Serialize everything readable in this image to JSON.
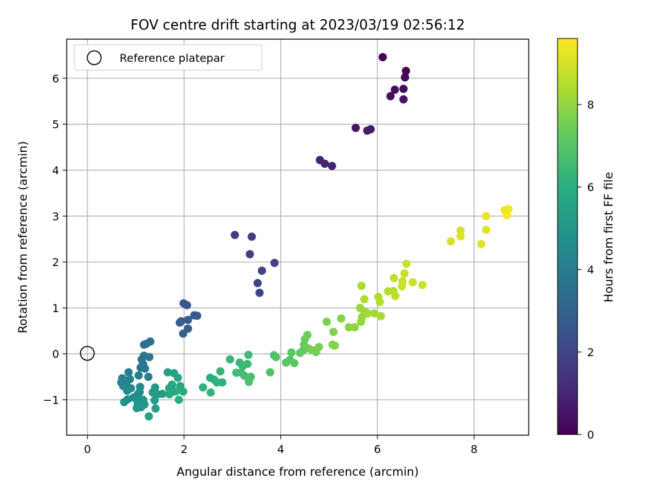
{
  "chart_data": {
    "type": "scatter",
    "title": "FOV centre drift starting at 2023/03/19 02:56:12",
    "xlabel": "Angular distance from reference (arcmin)",
    "ylabel": "Rotation from reference (arcmin)",
    "xlim": [
      -0.43,
      9.13
    ],
    "ylim": [
      -1.77,
      6.85
    ],
    "xticks": [
      0,
      2,
      4,
      6,
      8
    ],
    "yticks": [
      -1,
      0,
      1,
      2,
      3,
      4,
      5,
      6
    ],
    "grid": true,
    "legend": {
      "placement": "top-left",
      "entries": [
        "Reference platepar"
      ]
    },
    "reference_point": {
      "x": 0,
      "y": 0,
      "label": "Reference platepar"
    },
    "colorbar": {
      "label": "Hours from first FF file",
      "colormap": "viridis",
      "range": [
        0,
        9.6
      ],
      "ticks": [
        0,
        2,
        4,
        6,
        8
      ]
    },
    "points": [
      {
        "x": 6.11,
        "y": 6.46,
        "c": 0.05
      },
      {
        "x": 6.59,
        "y": 6.16,
        "c": 0.15
      },
      {
        "x": 6.57,
        "y": 6.02,
        "c": 0.25
      },
      {
        "x": 6.54,
        "y": 5.77,
        "c": 0.3
      },
      {
        "x": 6.36,
        "y": 5.75,
        "c": 0.35
      },
      {
        "x": 6.27,
        "y": 5.61,
        "c": 0.4
      },
      {
        "x": 6.54,
        "y": 5.54,
        "c": 0.45
      },
      {
        "x": 5.55,
        "y": 4.92,
        "c": 0.6
      },
      {
        "x": 5.86,
        "y": 4.89,
        "c": 0.65
      },
      {
        "x": 5.79,
        "y": 4.86,
        "c": 0.7
      },
      {
        "x": 4.81,
        "y": 4.22,
        "c": 0.85
      },
      {
        "x": 4.91,
        "y": 4.14,
        "c": 0.9
      },
      {
        "x": 5.06,
        "y": 4.09,
        "c": 0.95
      },
      {
        "x": 3.05,
        "y": 2.59,
        "c": 1.7
      },
      {
        "x": 3.4,
        "y": 2.55,
        "c": 1.75
      },
      {
        "x": 3.36,
        "y": 2.17,
        "c": 1.8
      },
      {
        "x": 3.87,
        "y": 1.98,
        "c": 1.85
      },
      {
        "x": 3.61,
        "y": 1.81,
        "c": 1.9
      },
      {
        "x": 3.52,
        "y": 1.54,
        "c": 1.95
      },
      {
        "x": 3.56,
        "y": 1.33,
        "c": 2.0
      },
      {
        "x": 1.99,
        "y": 1.1,
        "c": 2.6
      },
      {
        "x": 2.06,
        "y": 1.06,
        "c": 2.65
      },
      {
        "x": 2.21,
        "y": 0.84,
        "c": 2.7
      },
      {
        "x": 2.27,
        "y": 0.83,
        "c": 2.75
      },
      {
        "x": 2.08,
        "y": 0.74,
        "c": 2.8
      },
      {
        "x": 1.94,
        "y": 0.71,
        "c": 2.85
      },
      {
        "x": 1.91,
        "y": 0.68,
        "c": 2.9
      },
      {
        "x": 2.08,
        "y": 0.55,
        "c": 2.95
      },
      {
        "x": 1.98,
        "y": 0.44,
        "c": 3.0
      },
      {
        "x": 1.3,
        "y": 0.27,
        "c": 3.5
      },
      {
        "x": 1.22,
        "y": 0.22,
        "c": 3.55
      },
      {
        "x": 1.17,
        "y": 0.2,
        "c": 3.6
      },
      {
        "x": 1.17,
        "y": -0.04,
        "c": 3.65
      },
      {
        "x": 1.28,
        "y": -0.07,
        "c": 3.7
      },
      {
        "x": 1.12,
        "y": -0.12,
        "c": 3.75
      },
      {
        "x": 1.15,
        "y": -0.22,
        "c": 3.8
      },
      {
        "x": 1.1,
        "y": -0.3,
        "c": 3.85
      },
      {
        "x": 1.19,
        "y": -0.32,
        "c": 3.9
      },
      {
        "x": 0.85,
        "y": -0.4,
        "c": 4.0
      },
      {
        "x": 1.06,
        "y": -0.47,
        "c": 4.05
      },
      {
        "x": 1.26,
        "y": -0.5,
        "c": 4.1
      },
      {
        "x": 0.72,
        "y": -0.53,
        "c": 4.15
      },
      {
        "x": 0.88,
        "y": -0.55,
        "c": 4.2
      },
      {
        "x": 0.78,
        "y": -0.58,
        "c": 4.25
      },
      {
        "x": 0.7,
        "y": -0.62,
        "c": 4.3
      },
      {
        "x": 0.8,
        "y": -0.65,
        "c": 4.35
      },
      {
        "x": 0.74,
        "y": -0.7,
        "c": 4.4
      },
      {
        "x": 0.9,
        "y": -0.75,
        "c": 4.45
      },
      {
        "x": 0.82,
        "y": -0.8,
        "c": 4.5
      },
      {
        "x": 1.09,
        "y": -0.72,
        "c": 4.55
      },
      {
        "x": 1.08,
        "y": -0.83,
        "c": 4.6
      },
      {
        "x": 1.04,
        "y": -0.88,
        "c": 4.65
      },
      {
        "x": 0.95,
        "y": -0.95,
        "c": 4.7
      },
      {
        "x": 0.83,
        "y": -0.99,
        "c": 4.75
      },
      {
        "x": 0.76,
        "y": -1.05,
        "c": 4.8
      },
      {
        "x": 1.08,
        "y": -1.0,
        "c": 4.85
      },
      {
        "x": 1.15,
        "y": -1.0,
        "c": 4.9
      },
      {
        "x": 1.04,
        "y": -1.08,
        "c": 4.95
      },
      {
        "x": 1.18,
        "y": -1.1,
        "c": 5.0
      },
      {
        "x": 1.02,
        "y": -1.18,
        "c": 5.05
      },
      {
        "x": 1.11,
        "y": -1.16,
        "c": 5.1
      },
      {
        "x": 1.4,
        "y": -0.73,
        "c": 5.15
      },
      {
        "x": 1.35,
        "y": -0.84,
        "c": 5.2
      },
      {
        "x": 1.45,
        "y": -0.88,
        "c": 5.25
      },
      {
        "x": 1.55,
        "y": -0.87,
        "c": 5.3
      },
      {
        "x": 1.39,
        "y": -1.01,
        "c": 5.35
      },
      {
        "x": 1.41,
        "y": -1.19,
        "c": 5.4
      },
      {
        "x": 1.27,
        "y": -1.36,
        "c": 5.45
      },
      {
        "x": 1.66,
        "y": -0.4,
        "c": 5.5
      },
      {
        "x": 1.79,
        "y": -0.42,
        "c": 5.55
      },
      {
        "x": 1.87,
        "y": -0.52,
        "c": 5.6
      },
      {
        "x": 1.75,
        "y": -0.67,
        "c": 5.65
      },
      {
        "x": 1.69,
        "y": -0.75,
        "c": 5.7
      },
      {
        "x": 1.92,
        "y": -0.7,
        "c": 5.75
      },
      {
        "x": 1.82,
        "y": -0.82,
        "c": 5.8
      },
      {
        "x": 1.7,
        "y": -0.88,
        "c": 5.85
      },
      {
        "x": 1.98,
        "y": -0.82,
        "c": 5.9
      },
      {
        "x": 1.89,
        "y": -1.0,
        "c": 5.95
      },
      {
        "x": 2.54,
        "y": -0.52,
        "c": 6.0
      },
      {
        "x": 2.62,
        "y": -0.56,
        "c": 6.05
      },
      {
        "x": 2.79,
        "y": -0.62,
        "c": 6.1
      },
      {
        "x": 2.68,
        "y": -0.62,
        "c": 6.15
      },
      {
        "x": 2.39,
        "y": -0.73,
        "c": 6.2
      },
      {
        "x": 2.55,
        "y": -0.84,
        "c": 6.25
      },
      {
        "x": 2.75,
        "y": -0.38,
        "c": 6.3
      },
      {
        "x": 2.95,
        "y": -0.12,
        "c": 6.35
      },
      {
        "x": 3.15,
        "y": -0.19,
        "c": 6.4
      },
      {
        "x": 3.21,
        "y": -0.27,
        "c": 6.45
      },
      {
        "x": 3.31,
        "y": -0.22,
        "c": 6.5
      },
      {
        "x": 3.33,
        "y": -0.02,
        "c": 6.55
      },
      {
        "x": 3.08,
        "y": -0.41,
        "c": 6.6
      },
      {
        "x": 3.18,
        "y": -0.41,
        "c": 6.65
      },
      {
        "x": 3.25,
        "y": -0.48,
        "c": 6.7
      },
      {
        "x": 3.38,
        "y": -0.5,
        "c": 6.75
      },
      {
        "x": 3.34,
        "y": -0.61,
        "c": 6.8
      },
      {
        "x": 3.78,
        "y": -0.4,
        "c": 6.85
      },
      {
        "x": 3.86,
        "y": -0.03,
        "c": 6.9
      },
      {
        "x": 3.9,
        "y": -0.07,
        "c": 6.95
      },
      {
        "x": 4.19,
        "y": -0.13,
        "c": 7.0
      },
      {
        "x": 4.22,
        "y": 0.03,
        "c": 7.05
      },
      {
        "x": 4.11,
        "y": -0.19,
        "c": 7.1
      },
      {
        "x": 4.28,
        "y": -0.2,
        "c": 7.15
      },
      {
        "x": 4.4,
        "y": 0.02,
        "c": 7.2
      },
      {
        "x": 4.46,
        "y": 0.07,
        "c": 7.25
      },
      {
        "x": 4.48,
        "y": 0.2,
        "c": 7.3
      },
      {
        "x": 4.5,
        "y": 0.32,
        "c": 7.35
      },
      {
        "x": 4.55,
        "y": 0.41,
        "c": 7.4
      },
      {
        "x": 4.57,
        "y": 0.12,
        "c": 7.45
      },
      {
        "x": 4.65,
        "y": 0.08,
        "c": 7.5
      },
      {
        "x": 4.73,
        "y": 0.04,
        "c": 7.55
      },
      {
        "x": 4.79,
        "y": 0.15,
        "c": 7.6
      },
      {
        "x": 4.95,
        "y": 0.7,
        "c": 7.65
      },
      {
        "x": 5.09,
        "y": 0.48,
        "c": 7.7
      },
      {
        "x": 5.07,
        "y": 0.2,
        "c": 7.75
      },
      {
        "x": 5.12,
        "y": 0.18,
        "c": 7.8
      },
      {
        "x": 5.25,
        "y": 0.77,
        "c": 7.85
      },
      {
        "x": 5.41,
        "y": 0.58,
        "c": 7.9
      },
      {
        "x": 5.53,
        "y": 0.58,
        "c": 7.95
      },
      {
        "x": 5.66,
        "y": 0.7,
        "c": 8.0
      },
      {
        "x": 5.68,
        "y": 0.8,
        "c": 8.05
      },
      {
        "x": 5.64,
        "y": 1.0,
        "c": 8.1
      },
      {
        "x": 5.73,
        "y": 0.92,
        "c": 8.15
      },
      {
        "x": 5.8,
        "y": 0.88,
        "c": 8.2
      },
      {
        "x": 5.94,
        "y": 0.88,
        "c": 8.25
      },
      {
        "x": 6.07,
        "y": 0.82,
        "c": 8.3
      },
      {
        "x": 5.67,
        "y": 1.48,
        "c": 8.35
      },
      {
        "x": 5.73,
        "y": 1.19,
        "c": 8.4
      },
      {
        "x": 6.02,
        "y": 1.24,
        "c": 8.45
      },
      {
        "x": 6.05,
        "y": 1.13,
        "c": 8.5
      },
      {
        "x": 6.22,
        "y": 1.36,
        "c": 8.55
      },
      {
        "x": 6.33,
        "y": 1.37,
        "c": 8.6
      },
      {
        "x": 6.37,
        "y": 1.26,
        "c": 8.65
      },
      {
        "x": 6.34,
        "y": 1.65,
        "c": 8.7
      },
      {
        "x": 6.52,
        "y": 1.58,
        "c": 8.75
      },
      {
        "x": 6.56,
        "y": 1.75,
        "c": 8.8
      },
      {
        "x": 6.6,
        "y": 1.96,
        "c": 8.82
      },
      {
        "x": 6.51,
        "y": 1.47,
        "c": 8.85
      },
      {
        "x": 6.73,
        "y": 1.56,
        "c": 8.88
      },
      {
        "x": 6.93,
        "y": 1.5,
        "c": 8.9
      },
      {
        "x": 7.52,
        "y": 2.45,
        "c": 9.0
      },
      {
        "x": 7.72,
        "y": 2.68,
        "c": 9.05
      },
      {
        "x": 7.72,
        "y": 2.56,
        "c": 9.1
      },
      {
        "x": 8.15,
        "y": 2.39,
        "c": 9.15
      },
      {
        "x": 8.25,
        "y": 2.7,
        "c": 9.2
      },
      {
        "x": 8.25,
        "y": 3.0,
        "c": 9.3
      },
      {
        "x": 8.63,
        "y": 3.13,
        "c": 9.35
      },
      {
        "x": 8.71,
        "y": 3.15,
        "c": 9.4
      },
      {
        "x": 8.68,
        "y": 3.02,
        "c": 9.5
      }
    ]
  }
}
